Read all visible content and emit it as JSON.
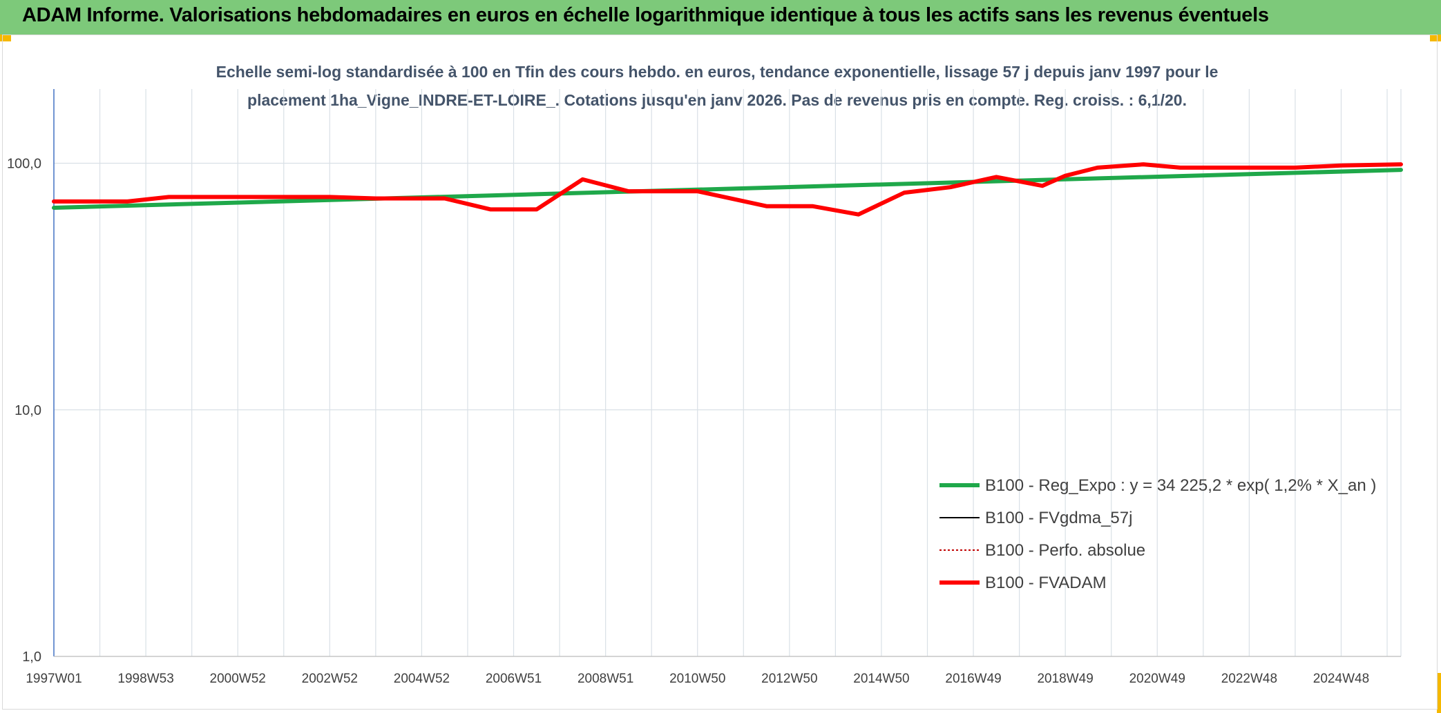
{
  "banner": {
    "title": "ADAM Informe. Valorisations hebdomadaires en euros en échelle logarithmique identique à tous les actifs sans les revenus éventuels"
  },
  "colors": {
    "banner_bg": "#7dc97a",
    "corner_accent": "#f5b800",
    "trend": "#1fa84a",
    "fvadam": "#ff0000",
    "fvgdma": "#000000",
    "perfo": "#c00000",
    "grid": "#d9e0e6",
    "axis": "#4472c4"
  },
  "chart_data": {
    "type": "line",
    "title_line1": "Echelle semi-log standardisée à 100 en Tfin des cours hebdo. en euros, tendance exponentielle, lissage 57 j depuis janv 1997 pour le",
    "title_line2": "placement 1ha_Vigne_INDRE-ET-LOIRE_. Cotations jusqu'en janv 2026. Pas de revenus pris en compte. Reg. croiss. : 6,1/20.",
    "y_scale": "log",
    "ylim": [
      1,
      200
    ],
    "xlim": [
      1997.0,
      2026.3
    ],
    "y_ticks": [
      {
        "value": 1,
        "label": "1,0"
      },
      {
        "value": 10,
        "label": "10,0"
      },
      {
        "value": 100,
        "label": "100,0"
      }
    ],
    "x_ticks": [
      {
        "value": 1997.0,
        "label": "1997W01"
      },
      {
        "value": 1999.0,
        "label": "1998W53"
      },
      {
        "value": 2001.0,
        "label": "2000W52"
      },
      {
        "value": 2003.0,
        "label": "2002W52"
      },
      {
        "value": 2005.0,
        "label": "2004W52"
      },
      {
        "value": 2007.0,
        "label": "2006W51"
      },
      {
        "value": 2009.0,
        "label": "2008W51"
      },
      {
        "value": 2011.0,
        "label": "2010W50"
      },
      {
        "value": 2013.0,
        "label": "2012W50"
      },
      {
        "value": 2015.0,
        "label": "2014W50"
      },
      {
        "value": 2017.0,
        "label": "2016W49"
      },
      {
        "value": 2019.0,
        "label": "2018W49"
      },
      {
        "value": 2021.0,
        "label": "2020W49"
      },
      {
        "value": 2023.0,
        "label": "2022W48"
      },
      {
        "value": 2025.0,
        "label": "2024W48"
      }
    ],
    "legend_position": "bottom-right",
    "grid": true,
    "series": [
      {
        "name": "B100 - Reg_Expo : y = 34 225,2 * exp( 1,2% *  X_an )",
        "style": "solid-thick",
        "color": "#1fa84a",
        "x": [
          1997.0,
          2026.3
        ],
        "y": [
          66,
          94
        ]
      },
      {
        "name": "B100 - FVgdma_57j",
        "style": "solid-thin",
        "color": "#000000",
        "x": [
          1997.0,
          1998.6,
          1999.5,
          2003.0,
          2004.0,
          2005.5,
          2006.5,
          2007.5,
          2008.5,
          2009.5,
          2011.0,
          2012.5,
          2013.5,
          2014.5,
          2015.5,
          2016.5,
          2017.5,
          2018.5,
          2019.0,
          2019.7,
          2020.7,
          2021.5,
          2023.0,
          2024.0,
          2025.0,
          2026.3
        ],
        "y": [
          70,
          70,
          73,
          73,
          72,
          72,
          65,
          65,
          86,
          77,
          77,
          67,
          67,
          62,
          76,
          80,
          88,
          81,
          89,
          96,
          99,
          96,
          96,
          96,
          98,
          99
        ]
      },
      {
        "name": "B100 - Perfo. absolue",
        "style": "dotted",
        "color": "#c00000",
        "x": [],
        "y": []
      },
      {
        "name": "B100 - FVADAM",
        "style": "solid-thick",
        "color": "#ff0000",
        "x": [
          1997.0,
          1998.6,
          1999.5,
          2003.0,
          2004.0,
          2005.5,
          2006.5,
          2007.5,
          2008.5,
          2009.5,
          2011.0,
          2012.5,
          2013.5,
          2014.5,
          2015.5,
          2016.5,
          2017.5,
          2018.5,
          2019.0,
          2019.7,
          2020.7,
          2021.5,
          2023.0,
          2024.0,
          2025.0,
          2026.3
        ],
        "y": [
          70,
          70,
          73,
          73,
          72,
          72,
          65,
          65,
          86,
          77,
          77,
          67,
          67,
          62,
          76,
          80,
          88,
          81,
          89,
          96,
          99,
          96,
          96,
          96,
          98,
          99
        ]
      }
    ]
  }
}
